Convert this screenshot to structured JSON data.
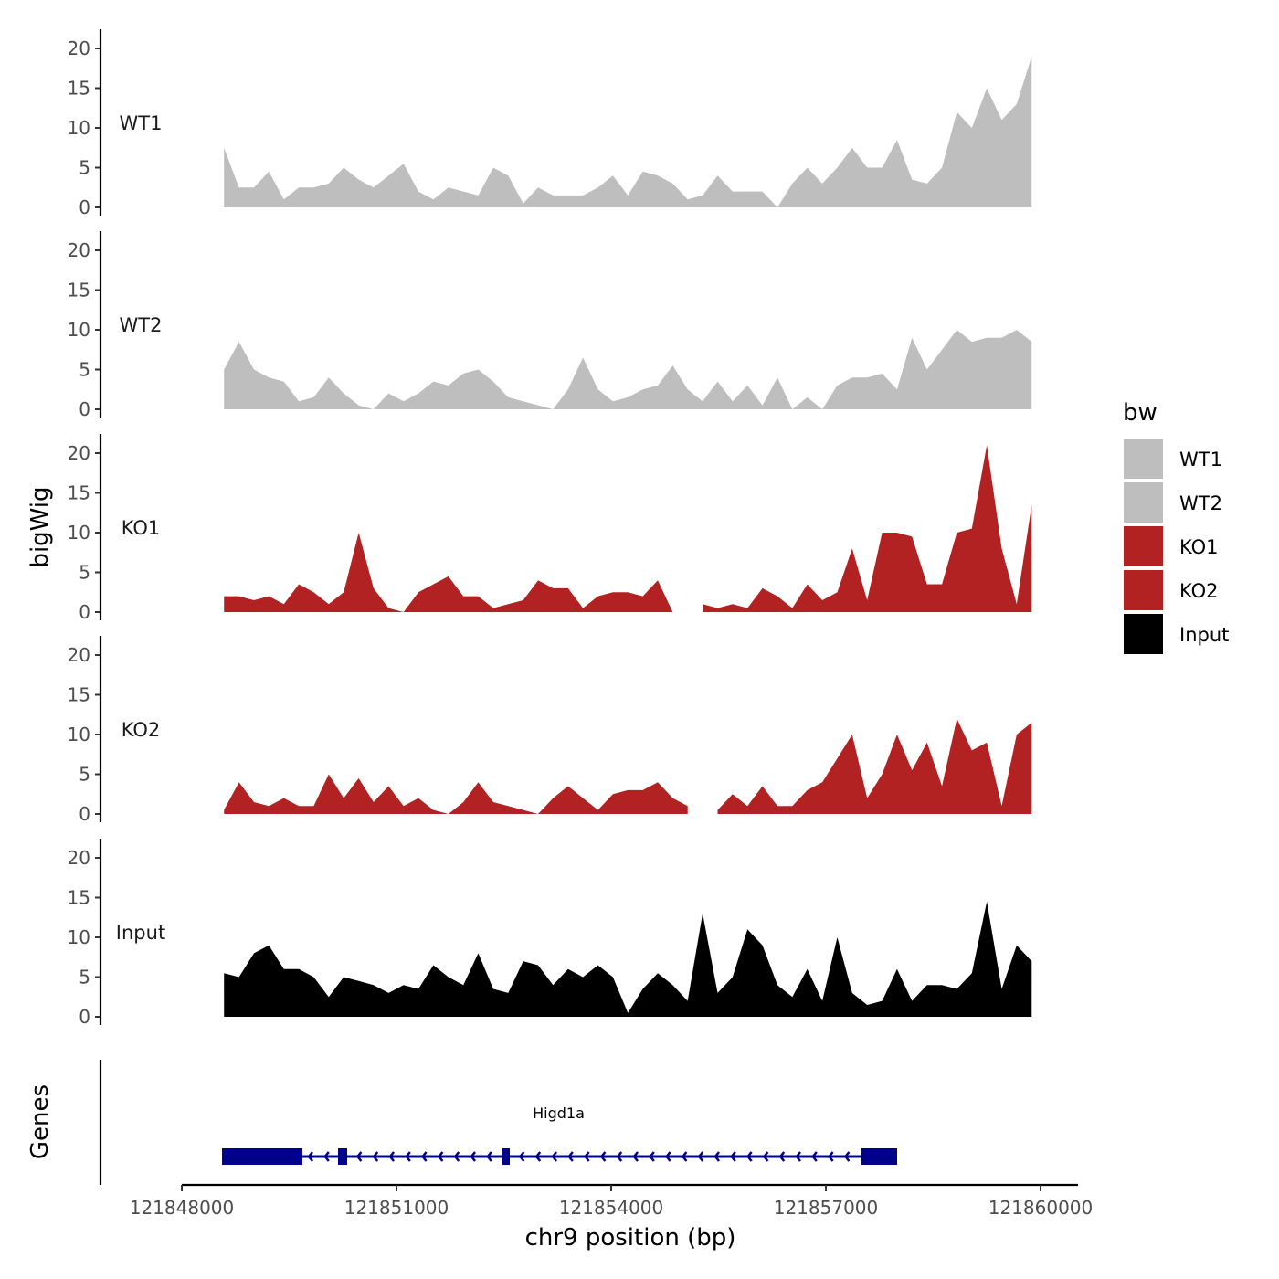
{
  "chart_data": {
    "type": "area",
    "ylabel": "bigWig",
    "gene_panel_label": "Genes",
    "xlabel": "chr9 position (bp)",
    "xlim": [
      121848000,
      121860500
    ],
    "x_ticks": [
      121848000,
      121851000,
      121854000,
      121857000,
      121860000
    ],
    "x_tick_labels": [
      "121848000",
      "121851000",
      "121854000",
      "121857000",
      "121860000"
    ],
    "ylim": [
      0,
      22
    ],
    "y_ticks": [
      0,
      5,
      10,
      15,
      20
    ],
    "y_tick_labels": [
      "0",
      "5",
      "10",
      "15",
      "20"
    ],
    "x_start": 121848590,
    "x_step": 209,
    "series": [
      {
        "name": "WT1",
        "color": "#bebebe",
        "values": [
          7.5,
          2.5,
          2.5,
          4.5,
          1,
          2.5,
          2.5,
          3,
          5,
          3.5,
          2.5,
          4,
          5.5,
          2,
          1,
          2.5,
          2,
          1.5,
          5,
          4,
          0.5,
          2.5,
          1.5,
          1.5,
          1.5,
          2.5,
          4,
          1.5,
          4.5,
          4,
          3,
          1,
          1.5,
          4,
          2,
          2,
          2,
          0,
          3,
          5,
          3,
          5,
          7.5,
          5,
          5,
          8.5,
          3.5,
          3,
          5,
          12,
          10,
          15,
          11,
          13,
          19
        ]
      },
      {
        "name": "WT2",
        "color": "#bebebe",
        "values": [
          5,
          8.5,
          5,
          4,
          3.5,
          1,
          1.5,
          4,
          2,
          0.5,
          0,
          2,
          1,
          2,
          3.5,
          3,
          4.5,
          5,
          3.5,
          1.5,
          1,
          0.5,
          0,
          2.5,
          6.5,
          2.5,
          1,
          1.5,
          2.5,
          3,
          5.5,
          2.5,
          1,
          3.5,
          1,
          3,
          0.5,
          4,
          0,
          1.5,
          0,
          3,
          4,
          4,
          4.5,
          2.5,
          9,
          5,
          7.5,
          10,
          8.5,
          9,
          9,
          10,
          8.5
        ]
      },
      {
        "name": "KO1",
        "color": "#b22222",
        "values": [
          2,
          2,
          1.5,
          2,
          1,
          3.5,
          2.5,
          1,
          2.5,
          10,
          3,
          0.5,
          0,
          2.5,
          3.5,
          4.5,
          2,
          2,
          0.5,
          1,
          1.5,
          4,
          3,
          3,
          0.5,
          2,
          2.5,
          2.5,
          2,
          4,
          0,
          null,
          1,
          0.5,
          1,
          0.5,
          3,
          2,
          0.5,
          3.5,
          1.5,
          2.5,
          8,
          1.5,
          10,
          10,
          9.5,
          3.5,
          3.5,
          10,
          10.5,
          21,
          8,
          1,
          13.5
        ]
      },
      {
        "name": "KO2",
        "color": "#b22222",
        "values": [
          0.5,
          4,
          1.5,
          1,
          2,
          1,
          1,
          5,
          2,
          4.5,
          1.5,
          3.5,
          1,
          2,
          0.5,
          0,
          1.5,
          4,
          1.5,
          1,
          0.5,
          0,
          2,
          3.5,
          2,
          0.5,
          2.5,
          3,
          3,
          4,
          2,
          1,
          null,
          0.5,
          2.5,
          1,
          3.5,
          1,
          1,
          3,
          4,
          7,
          10,
          2,
          5,
          10,
          5.5,
          9,
          3.5,
          12,
          8,
          9,
          1,
          10,
          11.5
        ]
      },
      {
        "name": "Input",
        "color": "#000000",
        "values": [
          5.5,
          5,
          8,
          9,
          6,
          6,
          5,
          2.5,
          5,
          4.5,
          4,
          3,
          4,
          3.5,
          6.5,
          5,
          4,
          8,
          3.5,
          3,
          7,
          6.5,
          4,
          6,
          5,
          6.5,
          5,
          0.5,
          3.5,
          5.5,
          4,
          2,
          13,
          3,
          5,
          11,
          9,
          4,
          2.5,
          6,
          2,
          10,
          3,
          1.5,
          2,
          6,
          2,
          4,
          4,
          3.5,
          5.5,
          14.5,
          3.5,
          9,
          7
        ]
      }
    ],
    "legend": {
      "title": "bw",
      "position": "right",
      "entries": [
        "WT1",
        "WT2",
        "KO1",
        "KO2",
        "Input"
      ]
    },
    "genes": [
      {
        "name": "Higd1a",
        "strand": "-",
        "color": "#00008b",
        "start": 121848562,
        "end": 121857996,
        "exons": [
          [
            121848562,
            121849685
          ],
          [
            121850183,
            121850311
          ],
          [
            121852481,
            121852583
          ],
          [
            121857498,
            121857996
          ]
        ]
      }
    ]
  }
}
